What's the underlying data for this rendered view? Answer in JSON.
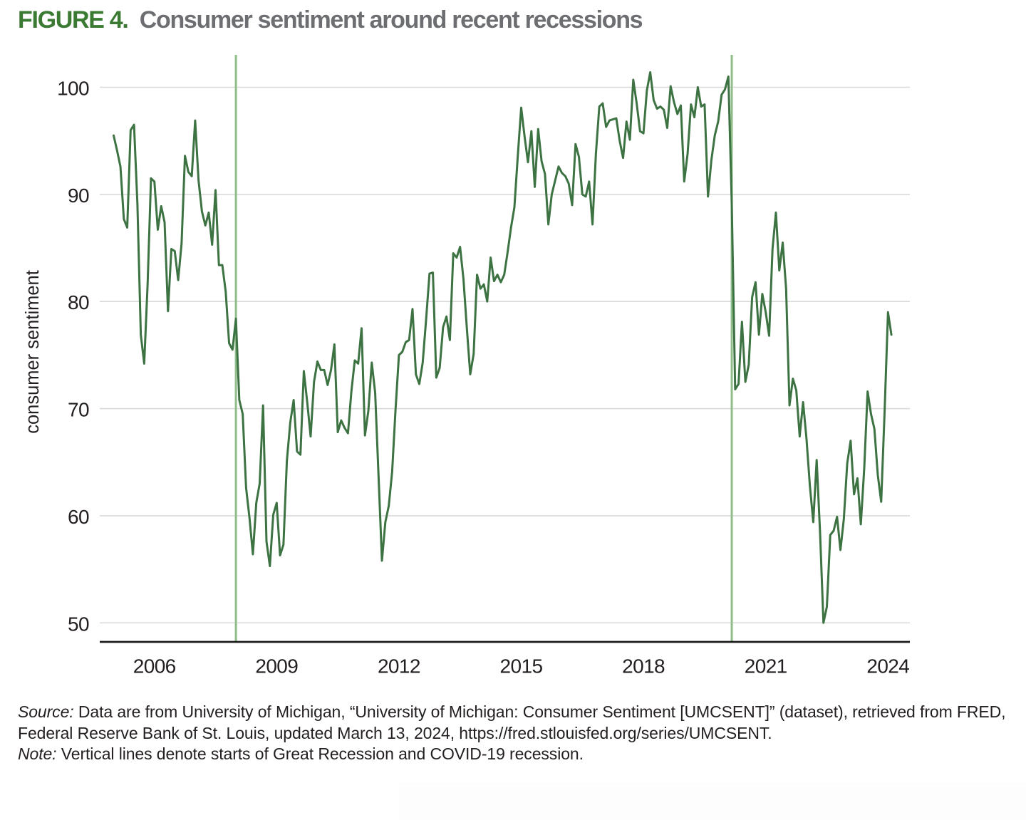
{
  "figure": {
    "label": "FIGURE 4.",
    "title": "Consumer sentiment around recent recessions"
  },
  "chart_data": {
    "type": "line",
    "title": "Consumer sentiment around recent recessions",
    "xlabel": "",
    "ylabel": "consumer sentiment",
    "frequency": "monthly",
    "x_start": "2005-01",
    "x_end": "2024-02",
    "ylim": [
      47,
      103
    ],
    "y_ticks": [
      50,
      60,
      70,
      80,
      90,
      100
    ],
    "x_tick_years": [
      2006,
      2009,
      2012,
      2015,
      2018,
      2021,
      2024
    ],
    "grid": true,
    "line_color": "#3d7343",
    "recession_line_color": "#90bd8a",
    "recession_starts": [
      "2008-01",
      "2020-03"
    ],
    "values": [
      95.5,
      94.1,
      92.6,
      87.7,
      86.9,
      96.0,
      96.5,
      89.1,
      76.9,
      74.2,
      81.6,
      91.5,
      91.2,
      86.7,
      88.9,
      87.4,
      79.1,
      84.9,
      84.7,
      82.0,
      85.4,
      93.6,
      92.1,
      91.7,
      96.9,
      91.3,
      88.4,
      87.1,
      88.3,
      85.3,
      90.4,
      83.4,
      83.4,
      80.9,
      76.1,
      75.5,
      78.4,
      70.8,
      69.5,
      62.6,
      59.8,
      56.4,
      61.2,
      63.0,
      70.3,
      57.6,
      55.3,
      60.1,
      61.2,
      56.3,
      57.3,
      65.1,
      68.7,
      70.8,
      66.0,
      65.7,
      73.5,
      70.6,
      67.4,
      72.5,
      74.4,
      73.6,
      73.6,
      72.2,
      73.6,
      76.0,
      67.8,
      68.9,
      68.2,
      67.7,
      71.6,
      74.5,
      74.2,
      77.5,
      67.5,
      69.8,
      74.3,
      71.5,
      63.7,
      55.8,
      59.4,
      60.9,
      64.1,
      69.9,
      75.0,
      75.3,
      76.2,
      76.4,
      79.3,
      73.2,
      72.3,
      74.3,
      78.3,
      82.6,
      82.7,
      72.9,
      73.8,
      77.6,
      78.6,
      76.4,
      84.5,
      84.1,
      85.1,
      82.1,
      77.5,
      73.2,
      75.1,
      82.5,
      81.2,
      81.6,
      80.0,
      84.1,
      81.9,
      82.5,
      81.8,
      82.5,
      84.6,
      86.9,
      88.8,
      93.6,
      98.1,
      95.4,
      93.0,
      95.9,
      90.7,
      96.1,
      93.1,
      91.9,
      87.2,
      90.0,
      91.3,
      92.6,
      92.0,
      91.7,
      91.0,
      89.0,
      94.7,
      93.5,
      90.0,
      89.8,
      91.2,
      87.2,
      93.8,
      98.2,
      98.5,
      96.3,
      96.9,
      97.0,
      97.1,
      95.0,
      93.4,
      96.8,
      95.1,
      100.7,
      98.5,
      95.9,
      95.7,
      99.7,
      101.4,
      98.8,
      98.0,
      98.2,
      97.9,
      96.2,
      100.1,
      98.6,
      97.5,
      98.3,
      91.2,
      93.8,
      98.4,
      97.2,
      100.0,
      98.2,
      98.4,
      89.8,
      93.2,
      95.5,
      96.8,
      99.3,
      99.8,
      101.0,
      89.1,
      71.8,
      72.3,
      78.1,
      72.5,
      74.1,
      80.4,
      81.8,
      76.9,
      80.7,
      79.0,
      76.8,
      84.9,
      88.3,
      82.9,
      85.5,
      81.2,
      70.3,
      72.8,
      71.7,
      67.4,
      70.6,
      67.2,
      62.8,
      59.4,
      65.2,
      58.4,
      50.0,
      51.5,
      58.2,
      58.6,
      59.9,
      56.8,
      59.7,
      64.9,
      67.0,
      62.0,
      63.5,
      59.2,
      64.4,
      71.6,
      69.5,
      68.1,
      63.8,
      61.3,
      69.7,
      79.0,
      76.9
    ]
  },
  "source": {
    "source_label": "Source:",
    "source_line1": "Data are from University of Michigan, “University of Michigan: Consumer Sentiment [UMCSENT]” (dataset), retrieved from FRED,",
    "source_line2": "Federal Reserve Bank of St. Louis, updated March 13, 2024, https://fred.stlouisfed.org/series/UMCSENT.",
    "note_label": "Note:",
    "note_text": "Vertical lines denote starts of Great Recession and COVID-19 recession."
  }
}
